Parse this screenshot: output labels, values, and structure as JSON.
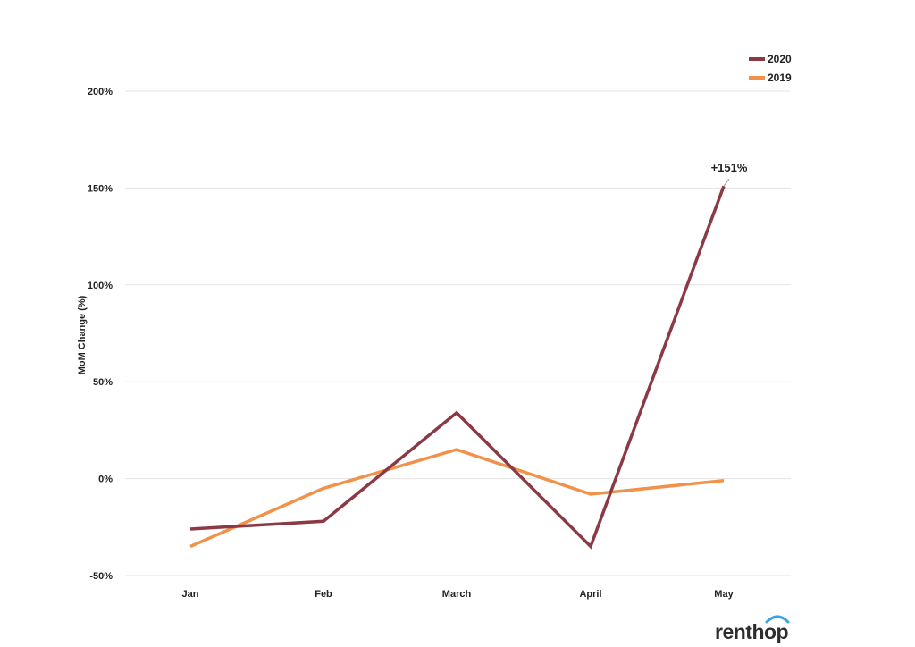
{
  "chart_data": {
    "type": "line",
    "title": "",
    "xlabel": "",
    "ylabel": "MoM Change (%)",
    "categories": [
      "Jan",
      "Feb",
      "March",
      "April",
      "May"
    ],
    "y_ticks": [
      {
        "value": -50,
        "label": "-50%"
      },
      {
        "value": 0,
        "label": "0%"
      },
      {
        "value": 50,
        "label": "50%"
      },
      {
        "value": 100,
        "label": "100%"
      },
      {
        "value": 150,
        "label": "150%"
      },
      {
        "value": 200,
        "label": "200%"
      }
    ],
    "ylim": [
      -50,
      200
    ],
    "grid": true,
    "legend_position": "top-right",
    "series": [
      {
        "name": "2020",
        "color": "#8b3a45",
        "values": [
          -26,
          -22,
          34,
          -35,
          151
        ]
      },
      {
        "name": "2019",
        "color": "#f0924a",
        "values": [
          -35,
          -5,
          15,
          -8,
          -1
        ]
      }
    ],
    "annotations": [
      {
        "series": "2020",
        "category": "May",
        "text": "+151%"
      }
    ]
  },
  "branding": {
    "logo_text": "renthop",
    "logo_icon": "wave-arc-icon",
    "logo_icon_color": "#3aa3e3"
  }
}
